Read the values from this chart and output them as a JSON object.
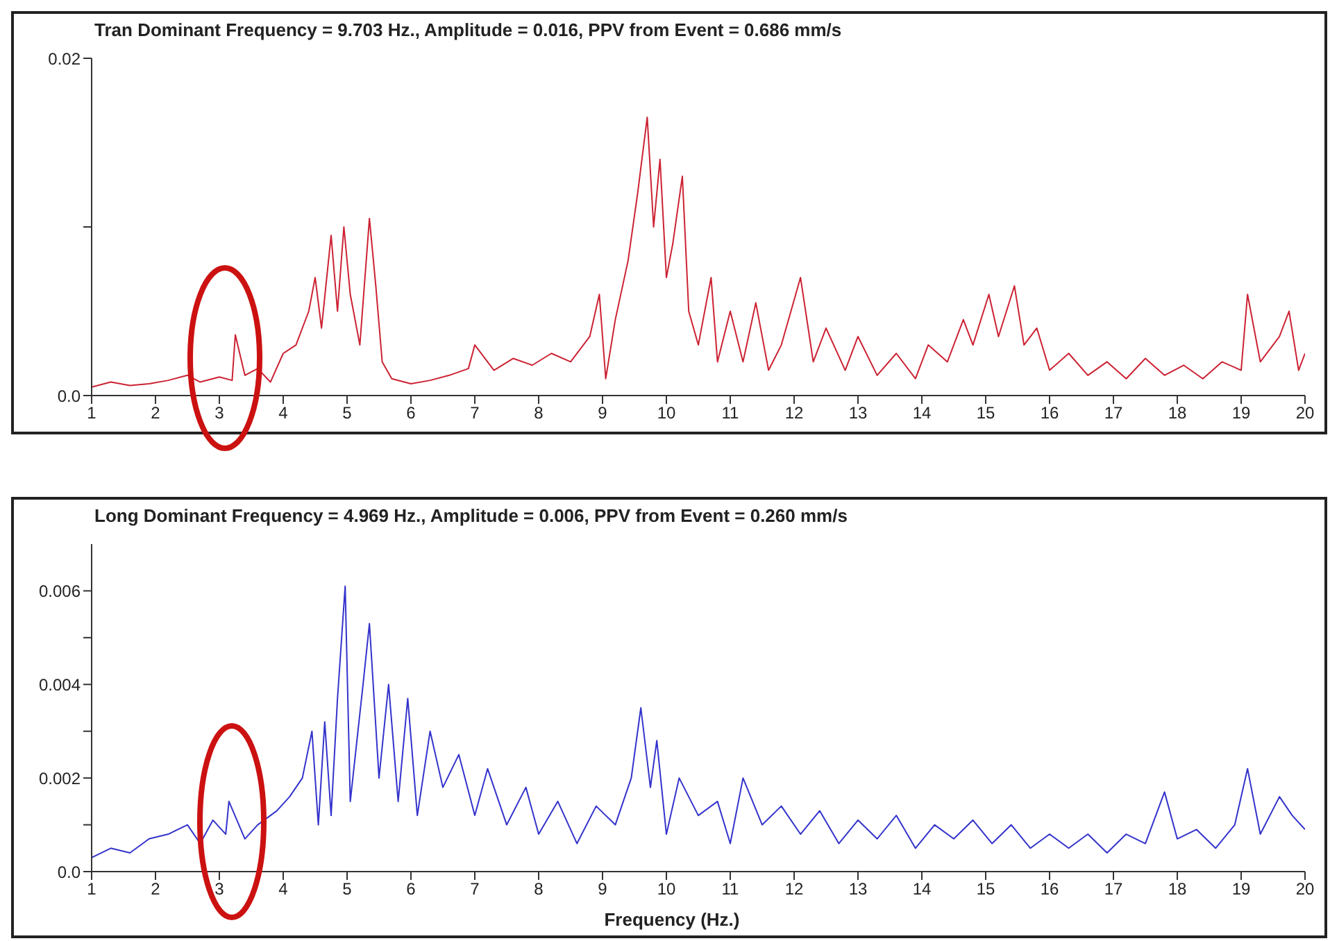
{
  "chart_data": [
    {
      "type": "line",
      "title": "Tran Dominant Frequency = 9.703 Hz., Amplitude = 0.016,  PPV from Event = 0.686 mm/s",
      "xlim": [
        1,
        20
      ],
      "xticks": [
        1,
        2,
        3,
        4,
        5,
        6,
        7,
        8,
        9,
        10,
        11,
        12,
        13,
        14,
        15,
        16,
        17,
        18,
        19,
        20
      ],
      "ylim": [
        0,
        0.02
      ],
      "yticks": [
        {
          "value": 0,
          "label": "0.0"
        },
        {
          "value": 0.01,
          "label": null
        },
        0.02
      ],
      "line_style": "solid",
      "series": [
        {
          "color": "#cc2233",
          "x": [
            1.0,
            1.3,
            1.6,
            1.9,
            2.2,
            2.5,
            2.7,
            3.0,
            3.2,
            3.25,
            3.4,
            3.6,
            3.8,
            4.0,
            4.2,
            4.4,
            4.5,
            4.6,
            4.75,
            4.85,
            4.95,
            5.05,
            5.2,
            5.35,
            5.45,
            5.55,
            5.7,
            6.0,
            6.3,
            6.6,
            6.9,
            7.0,
            7.3,
            7.6,
            7.9,
            8.2,
            8.5,
            8.8,
            8.95,
            9.05,
            9.2,
            9.4,
            9.55,
            9.7,
            9.8,
            9.9,
            10.0,
            10.1,
            10.25,
            10.35,
            10.5,
            10.7,
            10.8,
            11.0,
            11.2,
            11.4,
            11.6,
            11.8,
            12.1,
            12.3,
            12.5,
            12.8,
            13.0,
            13.3,
            13.6,
            13.9,
            14.1,
            14.4,
            14.65,
            14.8,
            15.05,
            15.2,
            15.45,
            15.6,
            15.8,
            16.0,
            16.3,
            16.6,
            16.9,
            17.2,
            17.5,
            17.8,
            18.1,
            18.4,
            18.7,
            19.0,
            19.1,
            19.3,
            19.6,
            19.75,
            19.9,
            20.0
          ],
          "values": [
            0.0005,
            0.0008,
            0.0006,
            0.0007,
            0.0009,
            0.0012,
            0.0008,
            0.0011,
            0.0009,
            0.0036,
            0.0012,
            0.0016,
            0.0008,
            0.0025,
            0.003,
            0.005,
            0.007,
            0.004,
            0.0095,
            0.005,
            0.01,
            0.006,
            0.003,
            0.0105,
            0.0065,
            0.002,
            0.001,
            0.0007,
            0.0009,
            0.0012,
            0.0016,
            0.003,
            0.0015,
            0.0022,
            0.0018,
            0.0025,
            0.002,
            0.0035,
            0.006,
            0.001,
            0.0045,
            0.008,
            0.012,
            0.0165,
            0.01,
            0.014,
            0.007,
            0.009,
            0.013,
            0.005,
            0.003,
            0.007,
            0.002,
            0.005,
            0.002,
            0.0055,
            0.0015,
            0.003,
            0.007,
            0.002,
            0.004,
            0.0015,
            0.0035,
            0.0012,
            0.0025,
            0.001,
            0.003,
            0.002,
            0.0045,
            0.003,
            0.006,
            0.0035,
            0.0065,
            0.003,
            0.004,
            0.0015,
            0.0025,
            0.0012,
            0.002,
            0.001,
            0.0022,
            0.0012,
            0.0018,
            0.001,
            0.002,
            0.0015,
            0.006,
            0.002,
            0.0035,
            0.005,
            0.0015,
            0.0025
          ]
        }
      ]
    },
    {
      "type": "line",
      "title": "Long Dominant Frequency = 4.969 Hz., Amplitude = 0.006,  PPV from Event = 0.260 mm/s",
      "xlabel": "Frequency (Hz.)",
      "xlim": [
        1,
        20
      ],
      "xticks": [
        1,
        2,
        3,
        4,
        5,
        6,
        7,
        8,
        9,
        10,
        11,
        12,
        13,
        14,
        15,
        16,
        17,
        18,
        19,
        20
      ],
      "ylim": [
        0,
        0.007
      ],
      "yticks": [
        {
          "value": 0,
          "label": "0.0"
        },
        {
          "value": 0.001,
          "label": null
        },
        0.002,
        {
          "value": 0.003,
          "label": null
        },
        0.004,
        {
          "value": 0.005,
          "label": null
        },
        0.006
      ],
      "line_style": "solid",
      "series": [
        {
          "color": "#3333cc",
          "x": [
            1.0,
            1.3,
            1.6,
            1.9,
            2.2,
            2.5,
            2.7,
            2.9,
            3.1,
            3.15,
            3.4,
            3.6,
            3.9,
            4.1,
            4.3,
            4.45,
            4.55,
            4.65,
            4.75,
            4.85,
            4.97,
            5.05,
            5.25,
            5.35,
            5.5,
            5.65,
            5.8,
            5.95,
            6.1,
            6.3,
            6.5,
            6.75,
            7.0,
            7.2,
            7.5,
            7.8,
            8.0,
            8.3,
            8.6,
            8.9,
            9.2,
            9.45,
            9.6,
            9.75,
            9.85,
            10.0,
            10.2,
            10.5,
            10.8,
            11.0,
            11.2,
            11.5,
            11.8,
            12.1,
            12.4,
            12.7,
            13.0,
            13.3,
            13.6,
            13.9,
            14.2,
            14.5,
            14.8,
            15.1,
            15.4,
            15.7,
            16.0,
            16.3,
            16.6,
            16.9,
            17.2,
            17.5,
            17.8,
            18.0,
            18.3,
            18.6,
            18.9,
            19.1,
            19.3,
            19.6,
            19.8,
            20.0
          ],
          "values": [
            0.0003,
            0.0005,
            0.0004,
            0.0007,
            0.0008,
            0.001,
            0.0006,
            0.0011,
            0.0008,
            0.0015,
            0.0007,
            0.001,
            0.0013,
            0.0016,
            0.002,
            0.003,
            0.001,
            0.0032,
            0.0012,
            0.0037,
            0.0061,
            0.0015,
            0.004,
            0.0053,
            0.002,
            0.004,
            0.0015,
            0.0037,
            0.0012,
            0.003,
            0.0018,
            0.0025,
            0.0012,
            0.0022,
            0.001,
            0.0018,
            0.0008,
            0.0015,
            0.0006,
            0.0014,
            0.001,
            0.002,
            0.0035,
            0.0018,
            0.0028,
            0.0008,
            0.002,
            0.0012,
            0.0015,
            0.0006,
            0.002,
            0.001,
            0.0014,
            0.0008,
            0.0013,
            0.0006,
            0.0011,
            0.0007,
            0.0012,
            0.0005,
            0.001,
            0.0007,
            0.0011,
            0.0006,
            0.001,
            0.0005,
            0.0008,
            0.0005,
            0.0008,
            0.0004,
            0.0008,
            0.0006,
            0.0017,
            0.0007,
            0.0009,
            0.0005,
            0.001,
            0.0022,
            0.0008,
            0.0016,
            0.0012,
            0.0009
          ]
        }
      ]
    }
  ]
}
